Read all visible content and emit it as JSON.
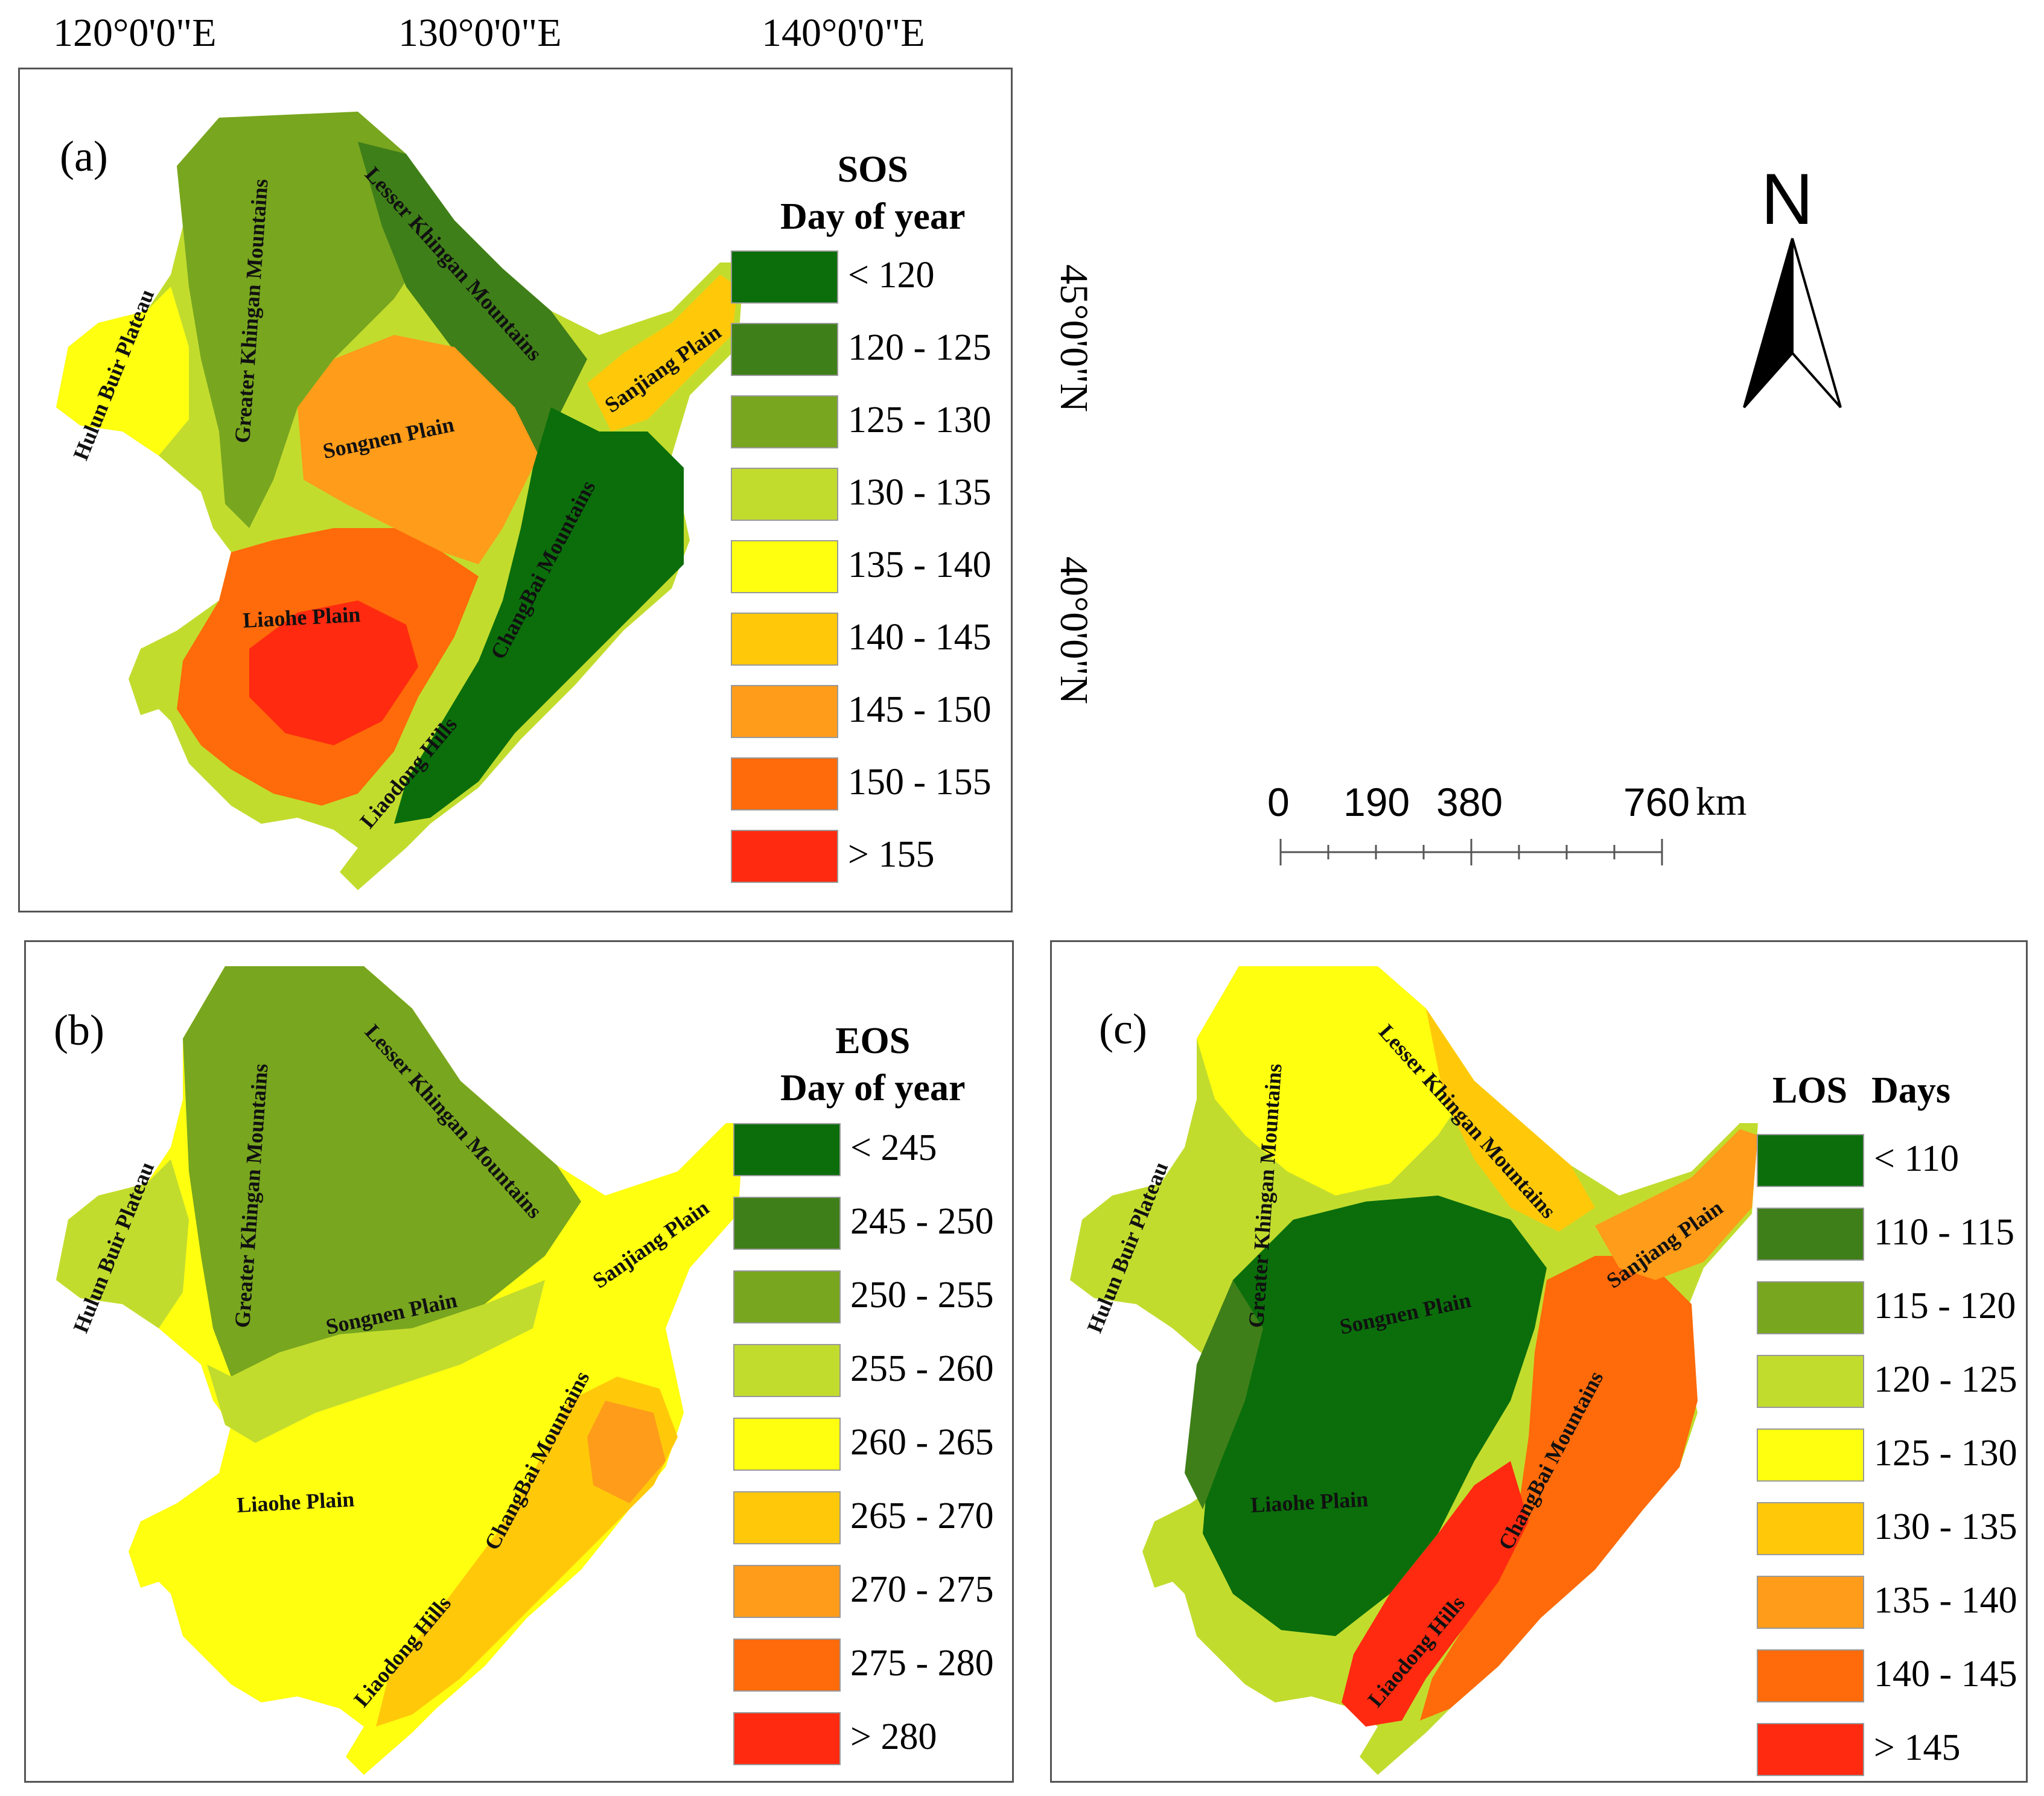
{
  "coordinates": {
    "lon_labels": [
      "120°0'0\"E",
      "130°0'0\"E",
      "140°0'0\"E"
    ],
    "lat_labels": [
      "45°0'0\"N",
      "40°0'0\"N"
    ]
  },
  "panel_a": {
    "label": "(a)",
    "legend_title_line1": "SOS",
    "legend_title_line2": "Day of year",
    "classes": [
      {
        "label": "< 120",
        "color": "#0b6e0b"
      },
      {
        "label": "120 - 125",
        "color": "#3f7f19"
      },
      {
        "label": "125 - 130",
        "color": "#78a61f"
      },
      {
        "label": "130 - 135",
        "color": "#c2dc2e"
      },
      {
        "label": "135 - 140",
        "color": "#ffff10"
      },
      {
        "label": "140 - 145",
        "color": "#ffc90a"
      },
      {
        "label": "145 - 150",
        "color": "#ff9c1a"
      },
      {
        "label": "150 - 155",
        "color": "#ff6a0a"
      },
      {
        "label": "> 155",
        "color": "#ff2a10"
      }
    ]
  },
  "panel_b": {
    "label": "(b)",
    "legend_title_line1": "EOS",
    "legend_title_line2": "Day of year",
    "classes": [
      {
        "label": "< 245",
        "color": "#0b6e0b"
      },
      {
        "label": "245 - 250",
        "color": "#3f7f19"
      },
      {
        "label": "250 - 255",
        "color": "#78a61f"
      },
      {
        "label": "255 - 260",
        "color": "#c2dc2e"
      },
      {
        "label": "260 - 265",
        "color": "#ffff10"
      },
      {
        "label": "265 - 270",
        "color": "#ffc90a"
      },
      {
        "label": "270 - 275",
        "color": "#ff9c1a"
      },
      {
        "label": "275 - 280",
        "color": "#ff6a0a"
      },
      {
        "label": "> 280",
        "color": "#ff2a10"
      }
    ]
  },
  "panel_c": {
    "label": "(c)",
    "legend_title_a": "LOS",
    "legend_title_b": "Days",
    "classes": [
      {
        "label": "< 110",
        "color": "#0b6e0b"
      },
      {
        "label": "110 - 115",
        "color": "#3f7f19"
      },
      {
        "label": "115 - 120",
        "color": "#78a61f"
      },
      {
        "label": "120 - 125",
        "color": "#c2dc2e"
      },
      {
        "label": "125 - 130",
        "color": "#ffff10"
      },
      {
        "label": "130 - 135",
        "color": "#ffc90a"
      },
      {
        "label": "135 - 140",
        "color": "#ff9c1a"
      },
      {
        "label": "140 - 145",
        "color": "#ff6a0a"
      },
      {
        "label": "> 145",
        "color": "#ff2a10"
      }
    ]
  },
  "regions": {
    "hulun": "Hulun Buir Plateau",
    "greater": "Greater Khingan Mountains",
    "lesser": "Lesser Khingan Mountains",
    "songnen": "Songnen Plain",
    "sanjiang": "Sanjiang Plain",
    "liaohe": "Liaohe Plain",
    "changbai": "ChangBai Mountains",
    "liaodong": "Liaodong Hills"
  },
  "north_arrow": {
    "letter": "N"
  },
  "scale_bar": {
    "ticks": [
      "0",
      "190",
      "380",
      "760"
    ],
    "unit": "km"
  }
}
